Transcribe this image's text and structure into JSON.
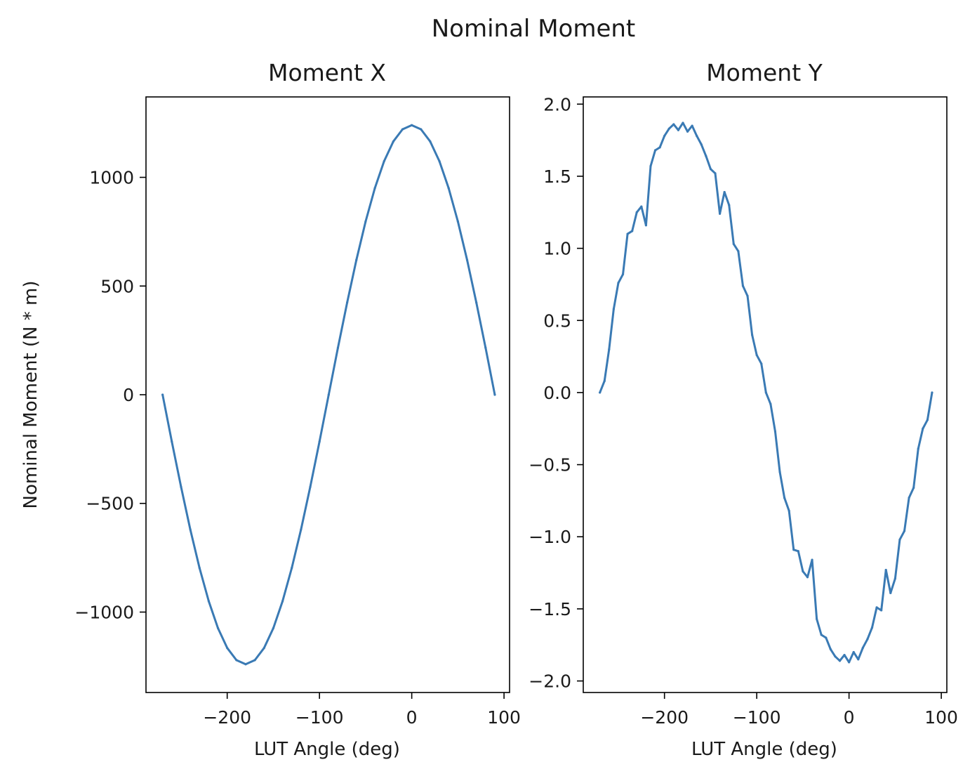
{
  "figure": {
    "title": "Nominal Moment",
    "line_color": "#3a7ab4"
  },
  "chart_data": [
    {
      "type": "line",
      "title": "Moment X",
      "xlabel": "LUT Angle (deg)",
      "ylabel": "Nominal Moment (N * m)",
      "xlim": [
        -288,
        106
      ],
      "ylim": [
        -1370,
        1370
      ],
      "xticks": [
        -200,
        -100,
        0,
        100
      ],
      "xtick_labels": [
        "−200",
        "−100",
        "0",
        "100"
      ],
      "yticks": [
        -1000,
        -500,
        0,
        500,
        1000
      ],
      "ytick_labels": [
        "−1000",
        "−500",
        "0",
        "500",
        "1000"
      ],
      "grid": false,
      "series": [
        {
          "x": [
            -270,
            -260,
            -250,
            -240,
            -230,
            -220,
            -210,
            -200,
            -190,
            -180,
            -170,
            -160,
            -150,
            -140,
            -130,
            -120,
            -110,
            -100,
            -90,
            -80,
            -70,
            -60,
            -50,
            -40,
            -30,
            -20,
            -10,
            0,
            10,
            20,
            30,
            40,
            50,
            60,
            70,
            80,
            90
          ],
          "y": [
            0,
            -216,
            -424,
            -620,
            -797,
            -950,
            -1074,
            -1165,
            -1221,
            -1240,
            -1221,
            -1165,
            -1074,
            -950,
            -797,
            -620,
            -424,
            -216,
            0,
            216,
            424,
            620,
            797,
            950,
            1074,
            1165,
            1221,
            1240,
            1221,
            1165,
            1074,
            950,
            797,
            620,
            424,
            216,
            0
          ]
        }
      ]
    },
    {
      "type": "line",
      "title": "Moment Y",
      "xlabel": "LUT Angle (deg)",
      "xlim": [
        -288,
        106
      ],
      "ylim": [
        -2.08,
        2.05
      ],
      "xticks": [
        -200,
        -100,
        0,
        100
      ],
      "xtick_labels": [
        "−200",
        "−100",
        "0",
        "100"
      ],
      "yticks": [
        -2.0,
        -1.5,
        -1.0,
        -0.5,
        0.0,
        0.5,
        1.0,
        1.5,
        2.0
      ],
      "ytick_labels": [
        "−2.0",
        "−1.5",
        "−1.0",
        "−0.5",
        "0.0",
        "0.5",
        "1.0",
        "1.5",
        "2.0"
      ],
      "grid": false,
      "series": [
        {
          "x": [
            -270,
            -265,
            -260,
            -255,
            -250,
            -245,
            -240,
            -235,
            -230,
            -225,
            -220,
            -215,
            -210,
            -205,
            -200,
            -195,
            -190,
            -185,
            -180,
            -175,
            -170,
            -165,
            -160,
            -155,
            -150,
            -145,
            -140,
            -135,
            -130,
            -125,
            -120,
            -115,
            -110,
            -105,
            -100,
            -95,
            -90,
            -85,
            -80,
            -75,
            -70,
            -65,
            -60,
            -55,
            -50,
            -45,
            -40,
            -35,
            -30,
            -25,
            -20,
            -15,
            -10,
            -5,
            0,
            5,
            10,
            15,
            20,
            25,
            30,
            35,
            40,
            45,
            50,
            55,
            60,
            65,
            70,
            75,
            80,
            85,
            90
          ],
          "y": [
            0.0,
            0.08,
            0.3,
            0.58,
            0.76,
            0.82,
            1.1,
            1.12,
            1.25,
            1.29,
            1.16,
            1.57,
            1.68,
            1.7,
            1.78,
            1.83,
            1.86,
            1.82,
            1.87,
            1.81,
            1.85,
            1.78,
            1.72,
            1.64,
            1.55,
            1.52,
            1.24,
            1.39,
            1.3,
            1.03,
            0.98,
            0.74,
            0.67,
            0.4,
            0.26,
            0.2,
            0.0,
            -0.08,
            -0.27,
            -0.55,
            -0.73,
            -0.82,
            -1.09,
            -1.1,
            -1.24,
            -1.28,
            -1.16,
            -1.57,
            -1.68,
            -1.7,
            -1.78,
            -1.83,
            -1.86,
            -1.82,
            -1.87,
            -1.8,
            -1.85,
            -1.77,
            -1.71,
            -1.63,
            -1.49,
            -1.51,
            -1.23,
            -1.39,
            -1.29,
            -1.02,
            -0.96,
            -0.73,
            -0.66,
            -0.39,
            -0.25,
            -0.19,
            0.0
          ]
        }
      ]
    }
  ]
}
